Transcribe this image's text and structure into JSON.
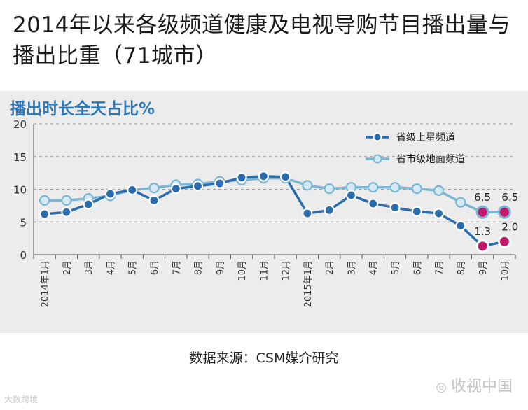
{
  "page": {
    "title": "2014年以来各级频道健康及电视导购节目播出量与播出比重（71城市）",
    "source": "数据来源：CSM媒介研究",
    "watermark_left": "大数跨境",
    "watermark_right": "收视中国"
  },
  "chart_data": {
    "type": "line",
    "subtitle": "播出时长全天占比%",
    "ylim": [
      0,
      20
    ],
    "yticks": [
      0,
      5,
      10,
      15,
      20
    ],
    "grid": true,
    "legend_position": "top-right",
    "categories": [
      "2014年1月",
      "2月",
      "3月",
      "4月",
      "5月",
      "6月",
      "7月",
      "8月",
      "9月",
      "10月",
      "11月",
      "12月",
      "2015年1月",
      "2月",
      "3月",
      "4月",
      "5月",
      "6月",
      "7月",
      "8月",
      "9月",
      "10月"
    ],
    "series": [
      {
        "name": "省级上星频道",
        "color": "#2b6cae",
        "values": [
          6.2,
          6.5,
          7.7,
          9.3,
          9.9,
          8.3,
          10.1,
          10.5,
          10.9,
          11.8,
          12.0,
          11.9,
          6.3,
          6.8,
          9.1,
          7.8,
          7.2,
          6.6,
          6.3,
          4.4,
          1.3,
          2.0
        ]
      },
      {
        "name": "省市级地面频道",
        "color": "#7ab6d6",
        "values": [
          8.3,
          8.3,
          8.6,
          9.0,
          9.9,
          10.2,
          10.7,
          10.8,
          11.2,
          11.4,
          11.7,
          11.7,
          10.6,
          10.1,
          10.3,
          10.3,
          10.3,
          10.1,
          9.8,
          8.0,
          6.5,
          6.5
        ]
      }
    ],
    "highlight_color": "#c2186b",
    "highlighted_index_from": 20,
    "data_labels": [
      {
        "series": 1,
        "index": 20,
        "text": "6.5"
      },
      {
        "series": 1,
        "index": 21,
        "text": "6.5"
      },
      {
        "series": 0,
        "index": 20,
        "text": "1.3"
      },
      {
        "series": 0,
        "index": 21,
        "text": "2.0"
      }
    ]
  }
}
